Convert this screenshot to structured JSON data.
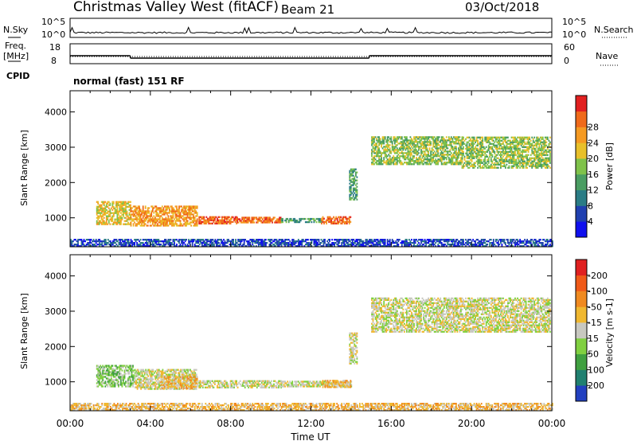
{
  "header": {
    "station": "Christmas Valley West (fitACF)",
    "beam": "Beam 21",
    "date": "03/Oct/2018"
  },
  "chart_data": [
    {
      "type": "line",
      "panel": "noise",
      "left_label": "N.Sky",
      "left_ticks": [
        "10^5",
        "10^0"
      ],
      "right_label": "N.Search",
      "right_ticks": [
        "10^5",
        "10^0"
      ]
    },
    {
      "type": "line",
      "panel": "frequency",
      "left_label": [
        "Freq.",
        "[MHz]"
      ],
      "left_ticks": [
        "18",
        "8"
      ],
      "right_label": "Nave",
      "right_ticks": [
        "60",
        "0"
      ],
      "freq_segments_hours": [
        {
          "x": [
            0.0,
            3.0
          ],
          "y": 12
        },
        {
          "x": [
            3.0,
            14.9
          ],
          "y": 10.8
        },
        {
          "x": [
            14.9,
            24.0
          ],
          "y": 12
        }
      ]
    },
    {
      "type": "heatmap",
      "panel": "power",
      "ylabel": "Slant Range [km]",
      "y_ticks": [
        1000,
        2000,
        3000,
        4000
      ],
      "ylim": [
        180,
        4600
      ],
      "xlim_hours": [
        0,
        24
      ],
      "colorbar_label": "Power [dB]",
      "colorbar_ticks": [
        4,
        8,
        12,
        16,
        20,
        24,
        28
      ],
      "colorbar_colors": [
        "#1010ee",
        "#2040b0",
        "#2a7c85",
        "#4a9d62",
        "#7fc24a",
        "#e8c02a",
        "#f59a22",
        "#f06a1a",
        "#e22020"
      ],
      "regions": [
        {
          "t0": 1.3,
          "t1": 3.0,
          "r0": 800,
          "r1": 1450,
          "level": 5
        },
        {
          "t0": 3.0,
          "t1": 6.3,
          "r0": 760,
          "r1": 1320,
          "level": 6
        },
        {
          "t0": 6.4,
          "t1": 8.3,
          "r0": 820,
          "r1": 1020,
          "level": 7
        },
        {
          "t0": 8.3,
          "t1": 10.5,
          "r0": 850,
          "r1": 1000,
          "level": 7
        },
        {
          "t0": 10.5,
          "t1": 12.5,
          "r0": 860,
          "r1": 960,
          "level": 3
        },
        {
          "t0": 12.5,
          "t1": 14.0,
          "r0": 820,
          "r1": 1020,
          "level": 7
        },
        {
          "t0": 13.9,
          "t1": 14.3,
          "r0": 1500,
          "r1": 2400,
          "level": 3
        },
        {
          "t0": 15.0,
          "t1": 19.5,
          "r0": 2500,
          "r1": 3300,
          "level": 4
        },
        {
          "t0": 19.5,
          "t1": 23.9,
          "r0": 2400,
          "r1": 3300,
          "level": 4
        },
        {
          "t0": 0.0,
          "t1": 24.0,
          "r0": 180,
          "r1": 380,
          "level": 1
        }
      ]
    },
    {
      "type": "heatmap",
      "panel": "velocity",
      "ylabel": "Slant Range [km]",
      "y_ticks": [
        1000,
        2000,
        3000,
        4000
      ],
      "ylim": [
        180,
        4600
      ],
      "xlim_hours": [
        0,
        24
      ],
      "colorbar_label": "Velocity [m s-1]",
      "colorbar_ticks": [
        200,
        100,
        50,
        15,
        -15,
        -50,
        -100,
        -200
      ],
      "colorbar_colors": [
        "#2240c0",
        "#208070",
        "#40a040",
        "#80d040",
        "#c8c8c0",
        "#f0b830",
        "#f08a20",
        "#f05a18",
        "#e02020"
      ],
      "regions": [
        {
          "t0": 1.3,
          "t1": 3.2,
          "r0": 850,
          "r1": 1450,
          "level": 3
        },
        {
          "t0": 3.2,
          "t1": 6.3,
          "r0": 780,
          "r1": 1350,
          "level": 4
        },
        {
          "t0": 4.5,
          "t1": 6.3,
          "r0": 800,
          "r1": 1150,
          "level": 5
        },
        {
          "t0": 6.4,
          "t1": 10.5,
          "r0": 820,
          "r1": 1020,
          "level": 4
        },
        {
          "t0": 10.5,
          "t1": 14.0,
          "r0": 850,
          "r1": 1000,
          "level": 4
        },
        {
          "t0": 12.5,
          "t1": 14.0,
          "r0": 830,
          "r1": 1020,
          "level": 5
        },
        {
          "t0": 13.9,
          "t1": 14.3,
          "r0": 1500,
          "r1": 2400,
          "level": 4
        },
        {
          "t0": 15.0,
          "t1": 23.9,
          "r0": 2400,
          "r1": 3350,
          "level": 4
        },
        {
          "t0": 0.0,
          "t1": 24.0,
          "r0": 180,
          "r1": 400,
          "level": 5
        }
      ]
    }
  ],
  "cpid": "CPID",
  "program": "normal (fast) 151 RF",
  "x_ticks": [
    "00:00",
    "04:00",
    "08:00",
    "12:00",
    "16:00",
    "20:00",
    "00:00"
  ],
  "xlabel": "Time UT"
}
